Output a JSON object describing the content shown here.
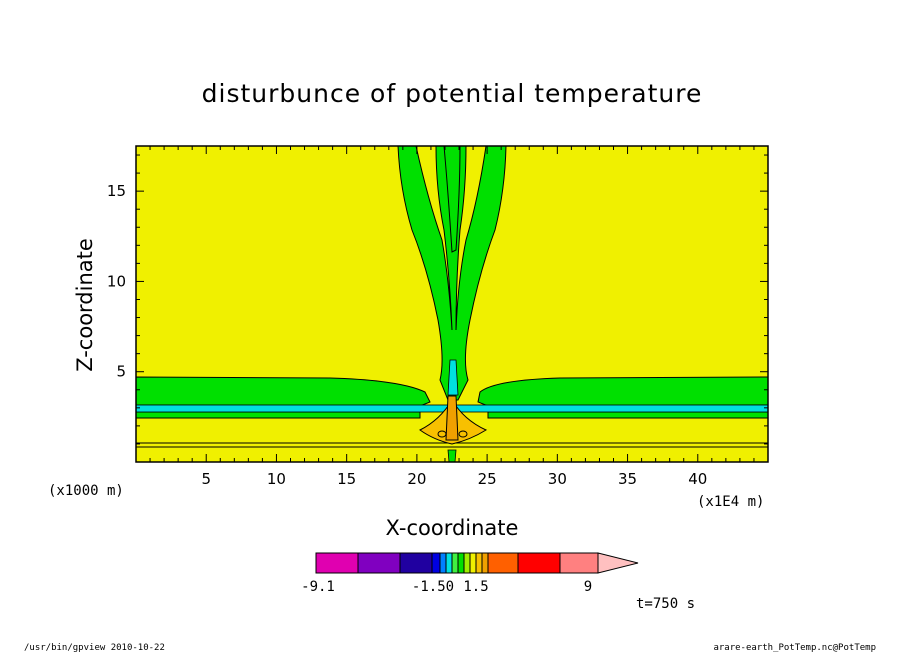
{
  "chart_data": {
    "type": "heatmap",
    "title": "disturbunce of potential temperature",
    "xlabel": "X-coordinate",
    "ylabel": "Z-coordinate",
    "x_scale_label": "(x1E4 m)",
    "y_scale_label": "(x1000 m)",
    "x_ticks": [
      5,
      10,
      15,
      20,
      25,
      30,
      35,
      40
    ],
    "y_ticks": [
      5,
      10,
      15
    ],
    "xlim": [
      0,
      45
    ],
    "ylim": [
      0,
      17.5
    ],
    "colorbar": {
      "colors": [
        "#e000b0",
        "#8000c0",
        "#2000a0",
        "#0000e0",
        "#0080ff",
        "#00e0e0",
        "#40f040",
        "#00e000",
        "#a0f000",
        "#f0f000",
        "#f8c000",
        "#f0a000",
        "#ff6000",
        "#ff0000",
        "#ff8080",
        "#ffc0c0"
      ],
      "labels": [
        "-9.1",
        "-1.5",
        "0",
        "1.5",
        "9"
      ]
    },
    "annotation": "t=750 s"
  },
  "footer": {
    "left": "/usr/bin/gpview   2010-10-22",
    "right": "arare-earth_PotTemp.nc@PotTemp"
  }
}
